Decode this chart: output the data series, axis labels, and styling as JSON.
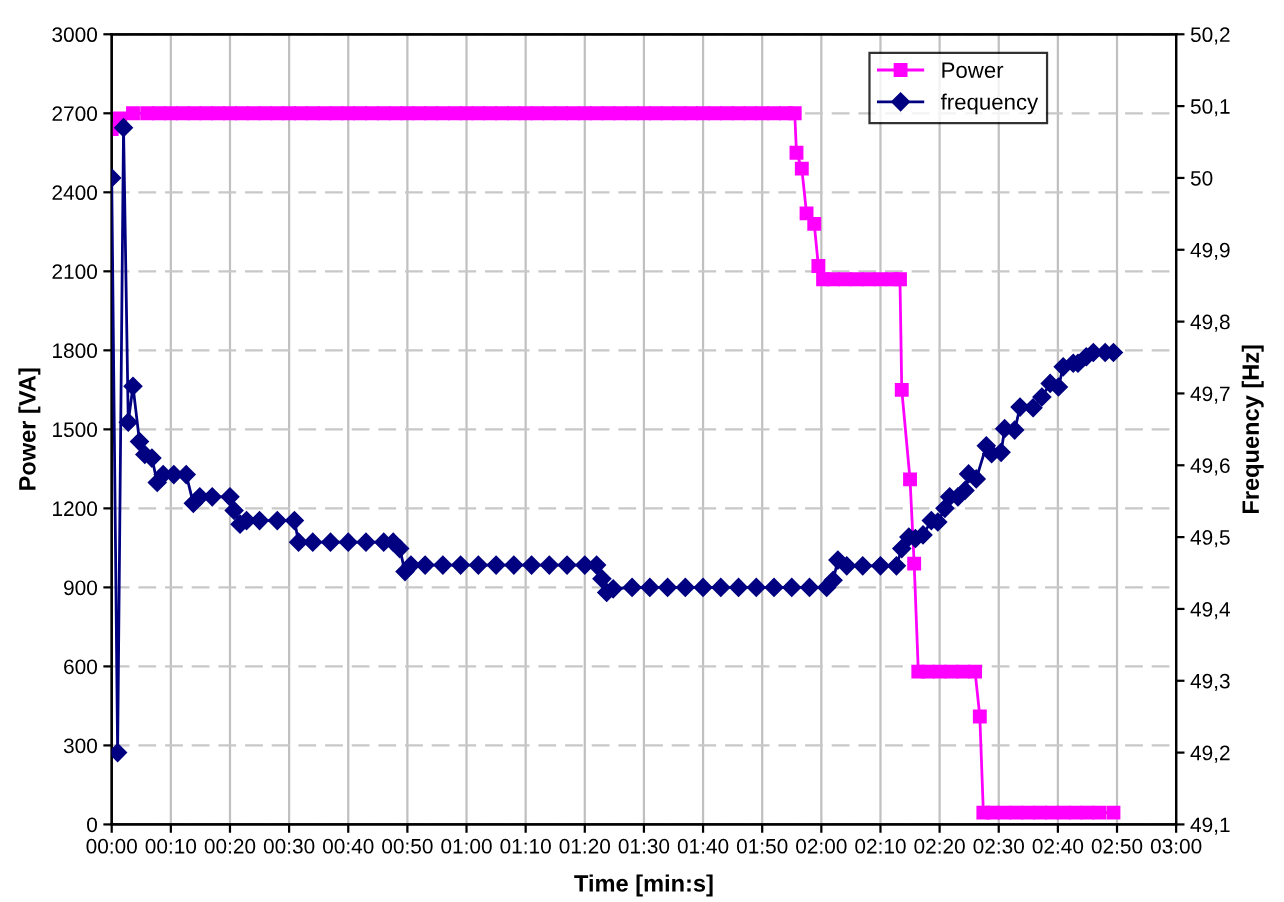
{
  "chart_data": {
    "type": "line",
    "xlabel": "Time [min:s]",
    "ylabel": "Power [VA]",
    "y2label": "Frequency [Hz]",
    "xlim": [
      0,
      180
    ],
    "xticks": [
      {
        "value": 0,
        "label": "00:00"
      },
      {
        "value": 10,
        "label": "00:10"
      },
      {
        "value": 20,
        "label": "00:20"
      },
      {
        "value": 30,
        "label": "00:30"
      },
      {
        "value": 40,
        "label": "00:40"
      },
      {
        "value": 50,
        "label": "00:50"
      },
      {
        "value": 60,
        "label": "01:00"
      },
      {
        "value": 70,
        "label": "01:10"
      },
      {
        "value": 80,
        "label": "01:20"
      },
      {
        "value": 90,
        "label": "01:30"
      },
      {
        "value": 100,
        "label": "01:40"
      },
      {
        "value": 110,
        "label": "01:50"
      },
      {
        "value": 120,
        "label": "02:00"
      },
      {
        "value": 130,
        "label": "02:10"
      },
      {
        "value": 140,
        "label": "02:20"
      },
      {
        "value": 150,
        "label": "02:30"
      },
      {
        "value": 160,
        "label": "02:40"
      },
      {
        "value": 170,
        "label": "02:50"
      },
      {
        "value": 180,
        "label": "03:00"
      }
    ],
    "ylim": [
      0,
      3000
    ],
    "yticks": [
      0,
      300,
      600,
      900,
      1200,
      1500,
      1800,
      2100,
      2400,
      2700,
      3000
    ],
    "y2lim": [
      49.1,
      50.2
    ],
    "y2ticks": [
      {
        "value": 49.1,
        "label": "49,1"
      },
      {
        "value": 49.2,
        "label": "49,2"
      },
      {
        "value": 49.3,
        "label": "49,3"
      },
      {
        "value": 49.4,
        "label": "49,4"
      },
      {
        "value": 49.5,
        "label": "49,5"
      },
      {
        "value": 49.6,
        "label": "49,6"
      },
      {
        "value": 49.7,
        "label": "49,7"
      },
      {
        "value": 49.8,
        "label": "49,8"
      },
      {
        "value": 49.9,
        "label": "49,9"
      },
      {
        "value": 50,
        "label": "50"
      },
      {
        "value": 50.1,
        "label": "50,1"
      },
      {
        "value": 50.2,
        "label": "50,2"
      }
    ],
    "grid": true,
    "legend": "top right",
    "series": [
      {
        "name": "Power",
        "color": "#ff00ff",
        "marker": "square",
        "axis": "y",
        "x": [
          0,
          1.4,
          3.6,
          6,
          8,
          10,
          12,
          14,
          16,
          18,
          20,
          22,
          24,
          26,
          28,
          30,
          32,
          34,
          36,
          38,
          40,
          42,
          44,
          46,
          48,
          50,
          52,
          54,
          56,
          58,
          60,
          62,
          64,
          66,
          68,
          70,
          72,
          74,
          76,
          78,
          80,
          82,
          84,
          86,
          88,
          90,
          92,
          94,
          96,
          98,
          100,
          102,
          104,
          106,
          108,
          110,
          112,
          114,
          115.5,
          115.8,
          116.7,
          117.5,
          118.8,
          119.5,
          120.3,
          122,
          124,
          126,
          128,
          130,
          132,
          133.3,
          133.6,
          135.0,
          135.7,
          136.4,
          138,
          140,
          142,
          144,
          146,
          146.8,
          147.4,
          149,
          151,
          153,
          155,
          157,
          159,
          161,
          163,
          165,
          167,
          169.4
        ],
        "values": [
          2640,
          2680,
          2700,
          2700,
          2700,
          2700,
          2700,
          2700,
          2700,
          2700,
          2700,
          2700,
          2700,
          2700,
          2700,
          2700,
          2700,
          2700,
          2700,
          2700,
          2700,
          2700,
          2700,
          2700,
          2700,
          2700,
          2700,
          2700,
          2700,
          2700,
          2700,
          2700,
          2700,
          2700,
          2700,
          2700,
          2700,
          2700,
          2700,
          2700,
          2700,
          2700,
          2700,
          2700,
          2700,
          2700,
          2700,
          2700,
          2700,
          2700,
          2700,
          2700,
          2700,
          2700,
          2700,
          2700,
          2700,
          2700,
          2700,
          2550,
          2490,
          2320,
          2280,
          2120,
          2070,
          2070,
          2070,
          2070,
          2070,
          2070,
          2070,
          2070,
          1650,
          1310,
          990,
          580,
          580,
          580,
          580,
          580,
          580,
          410,
          45,
          45,
          45,
          45,
          45,
          45,
          45,
          45,
          45,
          45,
          45,
          45
        ]
      },
      {
        "name": "frequency",
        "color": "#000080",
        "marker": "diamond",
        "axis": "y2",
        "x": [
          0,
          1,
          2,
          2.8,
          3.6,
          4.7,
          5.6,
          6.8,
          7.7,
          8.7,
          10.5,
          12.6,
          13.8,
          14.9,
          17,
          20,
          20.7,
          21.7,
          22.8,
          25,
          28,
          30.9,
          31.6,
          34,
          37,
          40,
          43,
          46,
          47.6,
          48.7,
          49.6,
          50.6,
          53,
          56,
          59,
          62,
          65,
          68,
          71,
          74,
          77,
          80,
          82,
          82.9,
          83.7,
          84.8,
          88,
          91,
          94,
          97,
          100,
          103,
          106,
          109,
          112,
          115,
          118,
          120.9,
          122,
          122.8,
          124.3,
          127,
          130,
          132.7,
          133.6,
          134.8,
          135.9,
          137.2,
          138.6,
          139.7,
          140.9,
          141.7,
          143.1,
          144.3,
          144.9,
          146.2,
          147.9,
          148.8,
          150.4,
          151,
          152.7,
          153.6,
          155.8,
          157.3,
          158.7,
          160.1,
          160.9,
          162.6,
          163.4,
          164.8,
          166,
          168,
          169.4
        ],
        "values": [
          50.0,
          49.2,
          50.07,
          49.66,
          49.71,
          49.633,
          49.615,
          49.61,
          49.576,
          49.587,
          49.587,
          49.587,
          49.547,
          49.556,
          49.556,
          49.556,
          49.537,
          49.518,
          49.523,
          49.523,
          49.523,
          49.523,
          49.493,
          49.493,
          49.493,
          49.493,
          49.493,
          49.493,
          49.493,
          49.484,
          49.452,
          49.461,
          49.461,
          49.461,
          49.461,
          49.461,
          49.461,
          49.461,
          49.461,
          49.461,
          49.461,
          49.461,
          49.461,
          49.442,
          49.423,
          49.428,
          49.43,
          49.43,
          49.43,
          49.43,
          49.43,
          49.43,
          49.43,
          49.43,
          49.43,
          49.43,
          49.43,
          49.43,
          49.44,
          49.468,
          49.46,
          49.46,
          49.46,
          49.46,
          49.484,
          49.5,
          49.498,
          49.503,
          49.523,
          49.521,
          49.54,
          49.556,
          49.556,
          49.565,
          49.588,
          49.581,
          49.627,
          49.616,
          49.618,
          49.651,
          49.649,
          49.681,
          49.68,
          49.695,
          49.714,
          49.709,
          49.737,
          49.742,
          49.742,
          49.751,
          49.757,
          49.757,
          49.757
        ]
      }
    ]
  }
}
